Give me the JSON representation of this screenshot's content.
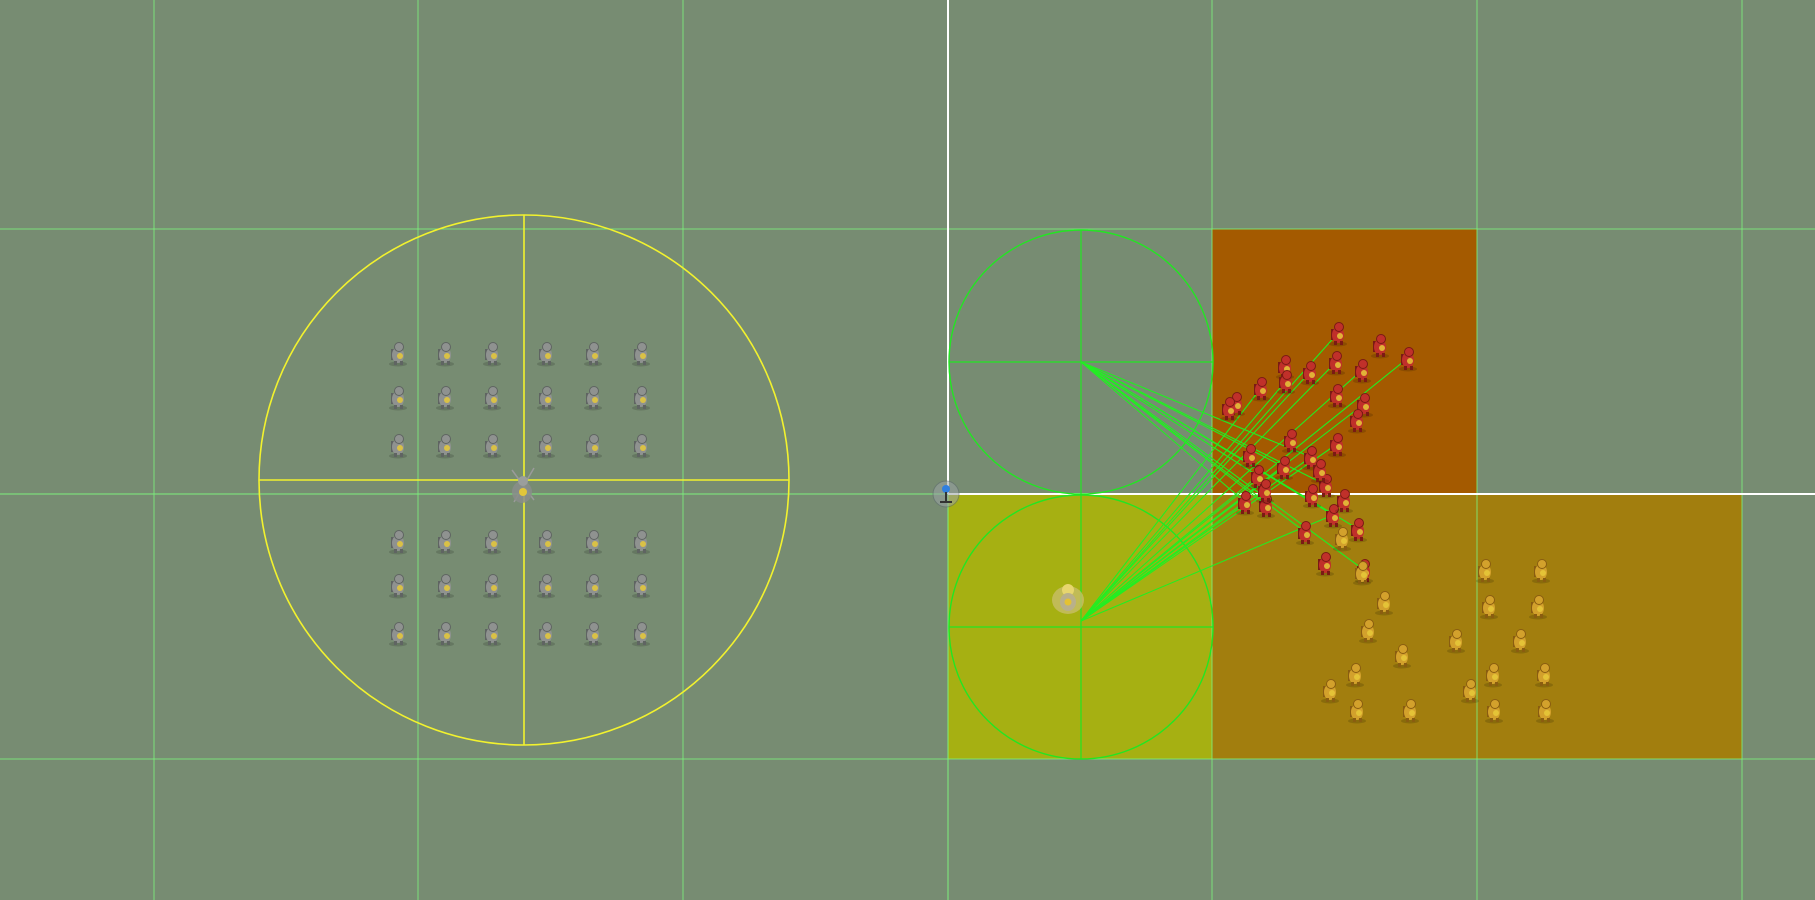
{
  "scene": {
    "name": "tilemap-editor-scene-view",
    "background_color": "#778c72",
    "grid_color": "#7cf07c",
    "origin_axis_color": "#ffffff",
    "colors": {
      "selection_circle": "#f2f22e",
      "radius_circle": "#22e622",
      "link_line": "#22ee22",
      "zone_yellow": "#a6b012",
      "zone_dark_orange": "#a45a00",
      "zone_orange": "#a27e0e",
      "unit_neutral": "#8f9290",
      "unit_red": "#c0302a",
      "unit_gold": "#d3a12c"
    },
    "icons": {
      "origin_gizmo": "pin-icon",
      "unit_sprite": "soldier-sprite-icon",
      "commander_sprite": "commander-sprite-icon"
    },
    "groups": {
      "neutral_formation_count": 36,
      "red_squad_count": 32,
      "gold_squad_count": 20,
      "link_count": 24
    }
  }
}
